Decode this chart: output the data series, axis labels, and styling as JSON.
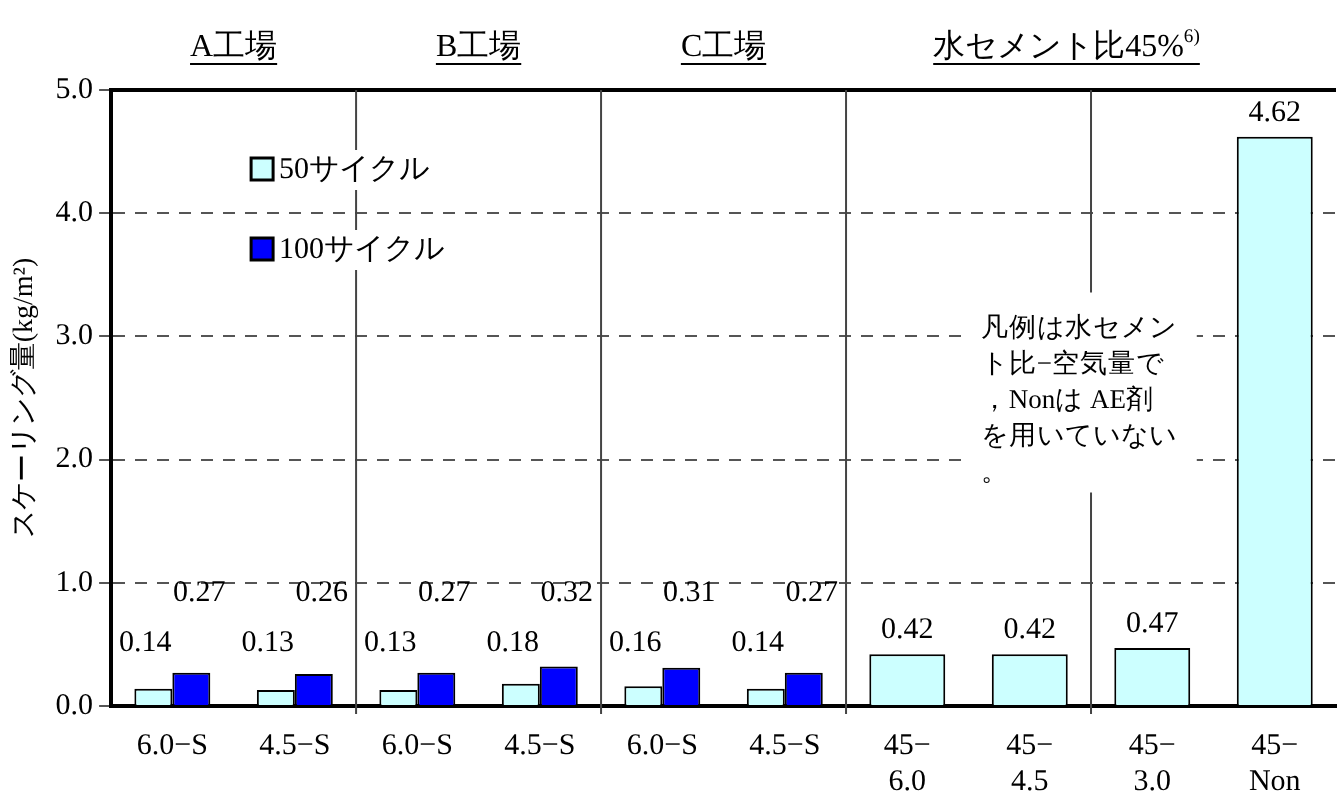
{
  "chart_data": {
    "type": "bar",
    "ylabel": "スケーリング量(kg/m²)",
    "categories": [
      "6.0−S",
      "4.5−S",
      "6.0−S",
      "4.5−S",
      "6.0−S",
      "4.5−S",
      "45−\n6.0",
      "45−\n4.5",
      "45−\n3.0",
      "45−\nNon"
    ],
    "series": [
      {
        "name": "50サイクル",
        "color": "#ccffff",
        "values": [
          0.14,
          0.13,
          0.13,
          0.18,
          0.16,
          0.14,
          0.42,
          0.42,
          0.47,
          4.62
        ]
      },
      {
        "name": "100サイクル",
        "color": "#0000ff",
        "values": [
          0.27,
          0.26,
          0.27,
          0.32,
          0.31,
          0.27,
          null,
          null,
          null,
          null
        ]
      }
    ],
    "ylim": [
      0,
      5
    ],
    "yticks": [
      {
        "value": 0,
        "label": "0.0"
      },
      {
        "value": 1,
        "label": "1.0"
      },
      {
        "value": 2,
        "label": "2.0"
      },
      {
        "value": 3,
        "label": "3.0"
      },
      {
        "value": 4,
        "label": "4.0"
      },
      {
        "value": 5,
        "label": "5.0"
      }
    ],
    "grid": "y",
    "legend": "top left",
    "data_labels": true,
    "annotations": [
      "A工場",
      "B工場",
      "C工場",
      "水セメント比45%$^{6)}$",
      "凡例は水セメント比−空気量で，Nonは AE剤を用いていない。"
    ]
  }
}
